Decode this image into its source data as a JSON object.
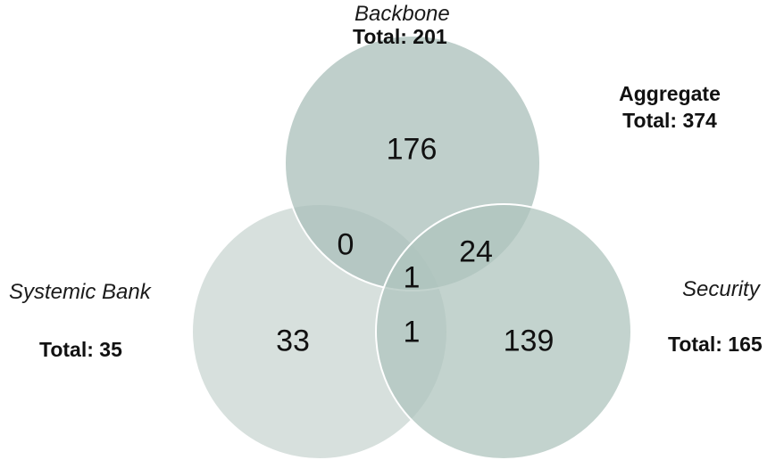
{
  "colors": {
    "backbone_fill": "#a9bfb9",
    "systemic_fill": "#c9d6d2",
    "security_fill": "#afc4bd",
    "outline": "#ffffff"
  },
  "sets": {
    "backbone": {
      "name": "Backbone",
      "total": "Total: 201"
    },
    "systemic": {
      "name": "Systemic Bank",
      "total": "Total: 35"
    },
    "security": {
      "name": "Security",
      "total": "Total: 165"
    }
  },
  "aggregate": {
    "label": "Aggregate",
    "total": "Total: 374"
  },
  "regions": {
    "backbone_only": "176",
    "systemic_only": "33",
    "security_only": "139",
    "backbone_systemic": "0",
    "backbone_security": "24",
    "systemic_security": "1",
    "all_three": "1"
  }
}
